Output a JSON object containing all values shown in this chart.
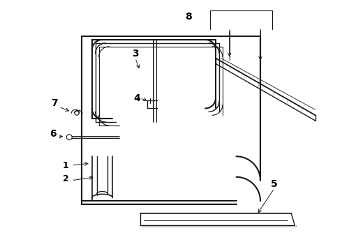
{
  "background_color": "#ffffff",
  "line_color": "#1a1a1a",
  "label_color": "#000000",
  "figsize": [
    4.9,
    3.6
  ],
  "dpi": 100
}
